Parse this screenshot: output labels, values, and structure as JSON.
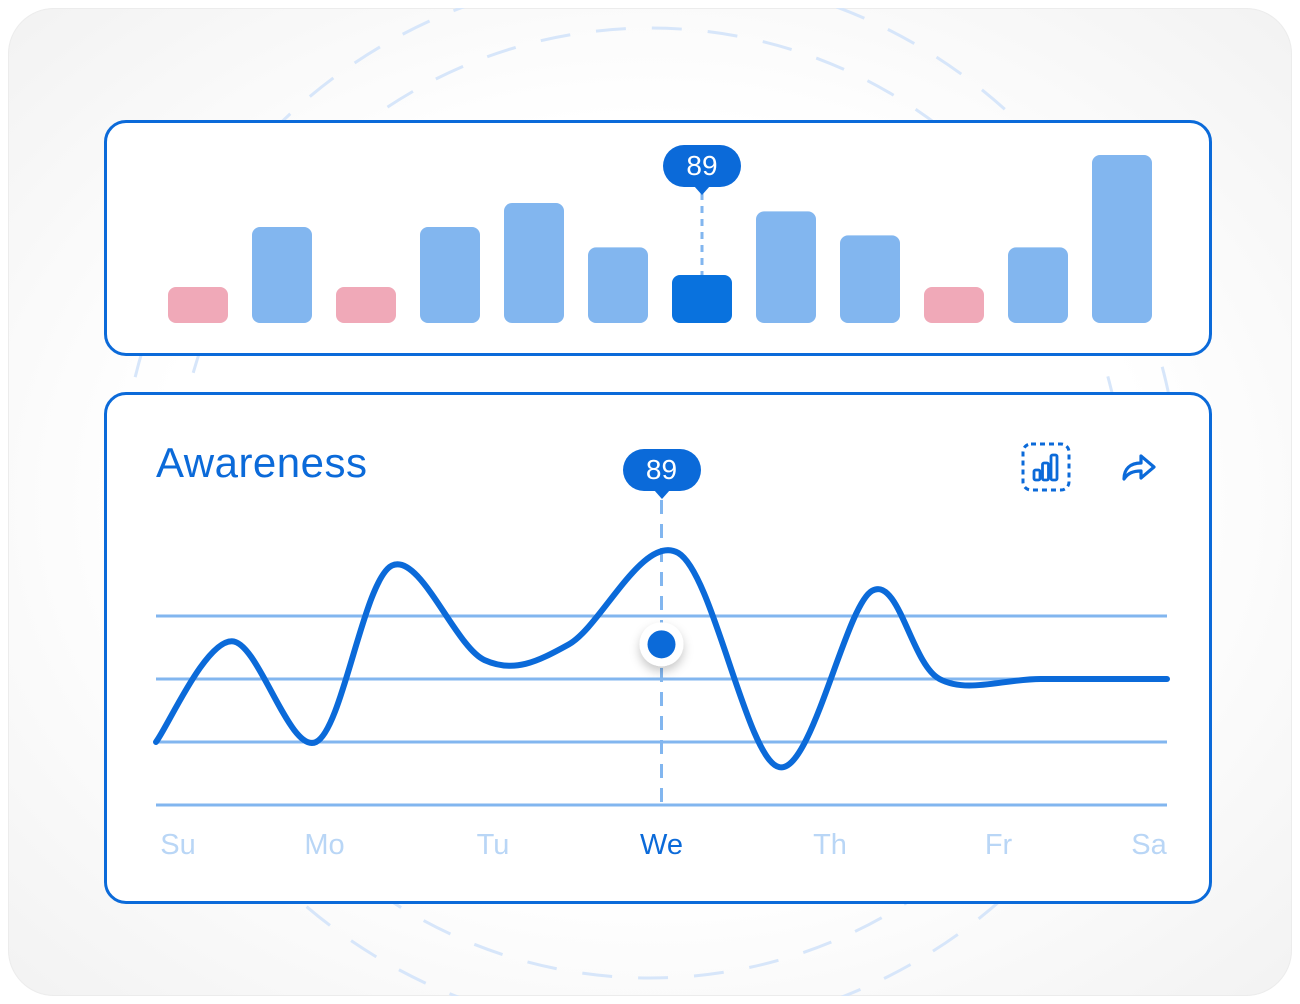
{
  "colors": {
    "accent": "#0b6ad9",
    "bar_default": "#82b6ef",
    "bar_negative": "#f0a9b8",
    "bar_selected": "#0972de",
    "day_inactive": "#b9d6f6"
  },
  "chart_data": [
    {
      "type": "bar",
      "values": [
        3,
        8,
        3,
        8,
        10,
        6.3,
        4,
        9.3,
        7.3,
        3,
        6.3,
        14
      ],
      "status": [
        "negative",
        "positive",
        "negative",
        "positive",
        "positive",
        "positive",
        "selected",
        "positive",
        "positive",
        "negative",
        "positive",
        "positive"
      ],
      "ylim": [
        0,
        14
      ],
      "selected_index": 6,
      "tooltip": "89"
    },
    {
      "type": "line",
      "title": "Awareness",
      "categories": [
        "Su",
        "Mo",
        "Tu",
        "We",
        "Th",
        "Fr",
        "Sa"
      ],
      "x": [
        0,
        0.45,
        0.95,
        1.4,
        1.95,
        2.45,
        3.1,
        3.7,
        4.25,
        4.65,
        5.25,
        6.0
      ],
      "values": [
        1.0,
        2.6,
        1.0,
        3.8,
        2.3,
        2.55,
        4.0,
        0.6,
        3.4,
        2.0,
        2.0,
        2.0
      ],
      "ylim": [
        0,
        5
      ],
      "gridlines": [
        0,
        1,
        2,
        3
      ],
      "selected_category": "We",
      "selected_x": 3.0,
      "selected_value": 2.55,
      "tooltip": "89",
      "icons": [
        "chart-select-icon",
        "share-arrow-icon"
      ]
    }
  ]
}
